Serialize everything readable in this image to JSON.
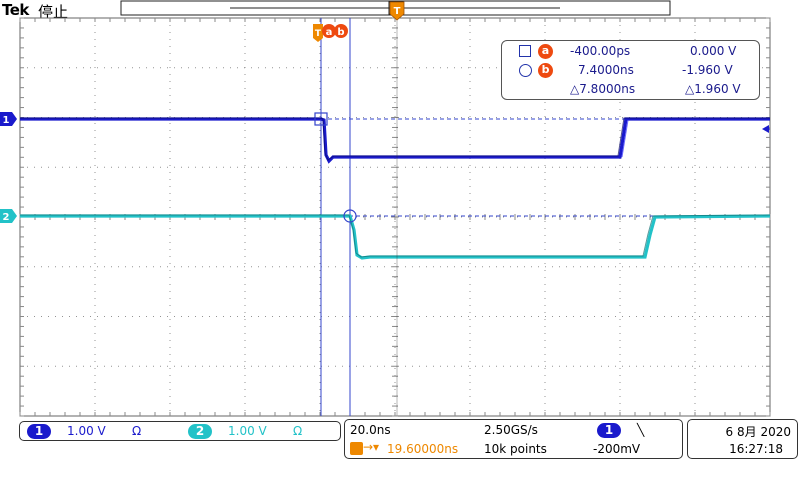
{
  "header": {
    "brand": "Tek",
    "status": "停止",
    "trigger_marker": "T"
  },
  "graticule": {
    "divisions_x": 10,
    "divisions_y": 8
  },
  "cursors": {
    "marker_label_t": "T",
    "marker_label_a": "a",
    "marker_label_b": "b",
    "readout": {
      "a_label": "a",
      "a_time": "-400.00ps",
      "a_volt": "0.000 V",
      "b_label": "b",
      "b_time": "7.4000ns",
      "b_volt": "-1.960 V",
      "delta_time": "△7.8000ns",
      "delta_volt": "△1.960 V"
    }
  },
  "channels": [
    {
      "id": "1",
      "color": "#1a1acc",
      "scale": "1.00 V",
      "coupling": "Ω"
    },
    {
      "id": "2",
      "color": "#22c2c8",
      "scale": "1.00 V",
      "coupling": "Ω"
    }
  ],
  "horizontal": {
    "timebase": "20.0ns",
    "sample_rate": "2.50GS/s",
    "trigger_delay": "19.60000ns",
    "record_length": "10k points"
  },
  "trigger": {
    "source": "1",
    "slope": "╲",
    "level": "-200mV"
  },
  "datetime": {
    "date": "6 8月 2020",
    "time": "16:27:18"
  },
  "colors": {
    "ch1": "#1a1acc",
    "ch2": "#22c2c8",
    "cursor": "#3344cc",
    "trigger": "#ee8800",
    "badge": "#ee4a10"
  }
}
